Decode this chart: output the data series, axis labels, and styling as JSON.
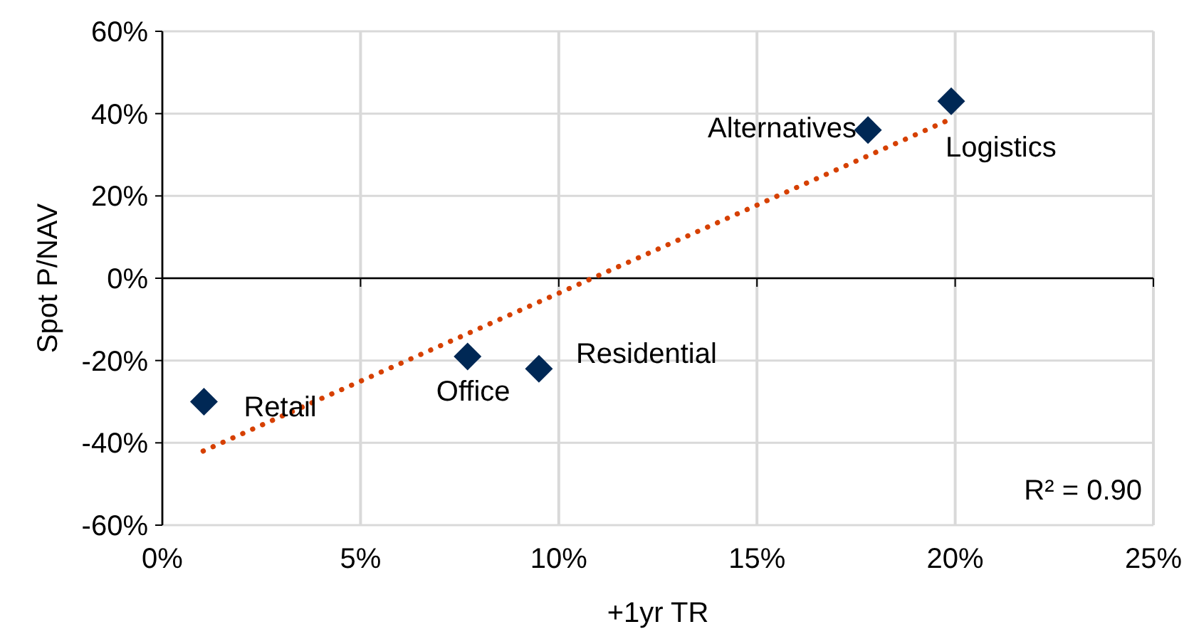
{
  "chart_data": {
    "type": "scatter",
    "xlabel": "+1yr TR",
    "ylabel": "Spot P/NAV",
    "xlim": [
      0,
      25
    ],
    "ylim": [
      -60,
      60
    ],
    "xticks": [
      {
        "value": 0,
        "label": "0%"
      },
      {
        "value": 5,
        "label": "5%"
      },
      {
        "value": 10,
        "label": "10%"
      },
      {
        "value": 15,
        "label": "15%"
      },
      {
        "value": 20,
        "label": "20%"
      },
      {
        "value": 25,
        "label": "25%"
      }
    ],
    "yticks": [
      {
        "value": -60,
        "label": "-60%"
      },
      {
        "value": -40,
        "label": "-40%"
      },
      {
        "value": -20,
        "label": "-20%"
      },
      {
        "value": 0,
        "label": "0%"
      },
      {
        "value": 20,
        "label": "20%"
      },
      {
        "value": 40,
        "label": "40%"
      },
      {
        "value": 60,
        "label": "60%"
      }
    ],
    "grid": true,
    "series": [
      {
        "color": "#002855",
        "marker": "diamond",
        "x": [
          1.05,
          7.7,
          9.5,
          17.8,
          19.9
        ],
        "values": [
          -30,
          -19,
          -22,
          36,
          43
        ]
      },
      {
        "type": "line",
        "color": "#d64000",
        "marker": "none",
        "line_style": "dotted",
        "x": [
          1.03,
          19.8
        ],
        "values": [
          -42,
          38.3
        ]
      }
    ],
    "annotations": [
      {
        "text": "Retail",
        "x": 1.05,
        "y": -30
      },
      {
        "text": "Office",
        "x": 7.7,
        "y": -19
      },
      {
        "text": "Residential",
        "x": 9.5,
        "y": -22
      },
      {
        "text": "Alternatives",
        "x": 17.8,
        "y": 36
      },
      {
        "text": "Logistics",
        "x": 19.9,
        "y": 43
      },
      "R² = 0.90"
    ]
  }
}
